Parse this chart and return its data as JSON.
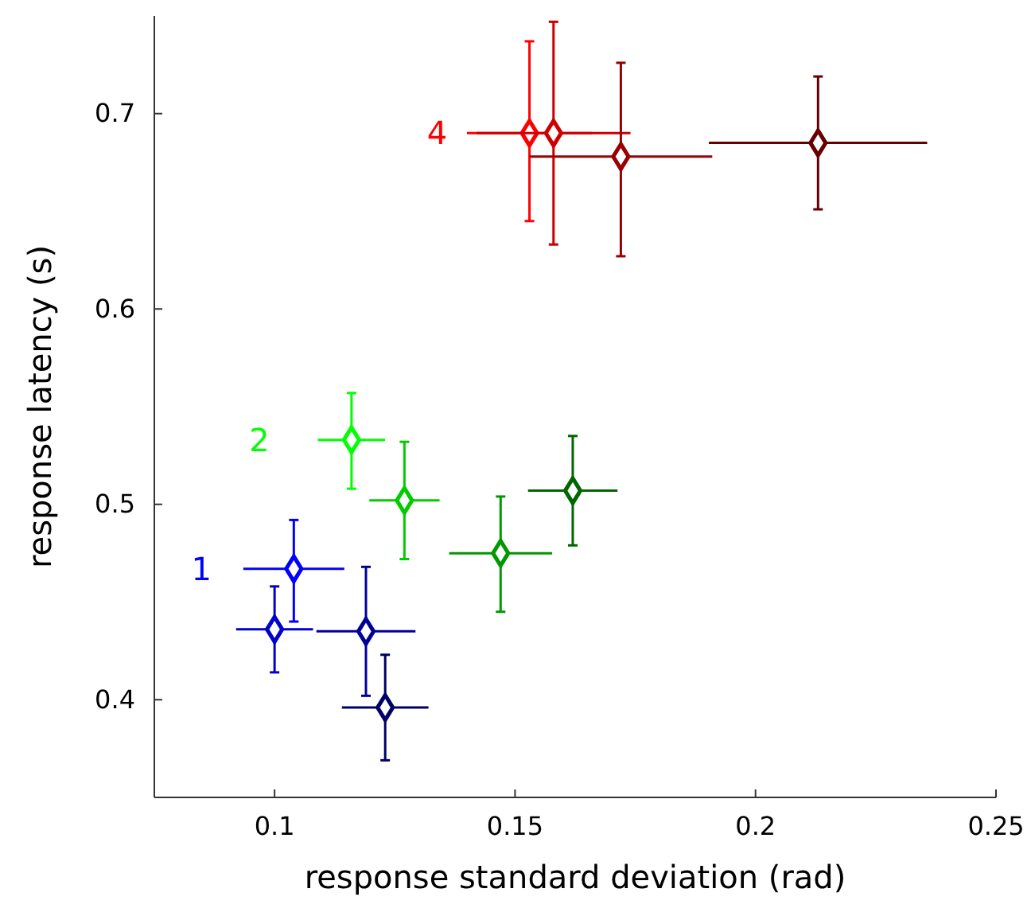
{
  "chart_data": {
    "type": "scatter",
    "xlabel": "response standard deviation (rad)",
    "ylabel": "response latency (s)",
    "xlim": [
      0.075,
      0.25
    ],
    "ylim": [
      0.35,
      0.75
    ],
    "xticks": [
      0.1,
      0.15,
      0.2,
      0.25
    ],
    "yticks": [
      0.4,
      0.5,
      0.6,
      0.7
    ],
    "marker": "diamond",
    "grid": false,
    "legend": false,
    "series": [
      {
        "name": "1",
        "color": "#0000ff",
        "colors": [
          "#0000ff",
          "#0000cc",
          "#000099",
          "#000066"
        ],
        "x": [
          0.104,
          0.1,
          0.119,
          0.123
        ],
        "values": [
          0.467,
          0.436,
          0.435,
          0.396
        ],
        "xerrors": [
          0.0105,
          0.008,
          0.0103,
          0.009
        ],
        "errors": [
          [
            0.44,
            0.492
          ],
          [
            0.414,
            0.458
          ],
          [
            0.402,
            0.468
          ],
          [
            0.369,
            0.423
          ]
        ]
      },
      {
        "name": "2",
        "color": "#00ff00",
        "colors": [
          "#00ff00",
          "#00cc00",
          "#009900",
          "#006600"
        ],
        "x": [
          0.116,
          0.127,
          0.147,
          0.162
        ],
        "values": [
          0.533,
          0.502,
          0.475,
          0.507
        ],
        "xerrors": [
          0.007,
          0.0073,
          0.0107,
          0.0093
        ],
        "errors": [
          [
            0.508,
            0.557
          ],
          [
            0.472,
            0.532
          ],
          [
            0.445,
            0.504
          ],
          [
            0.479,
            0.535
          ]
        ]
      },
      {
        "name": "4",
        "color": "#ff0000",
        "colors": [
          "#ff0000",
          "#cc0000",
          "#990000",
          "#660000"
        ],
        "x": [
          0.153,
          0.158,
          0.172,
          0.213
        ],
        "values": [
          0.69,
          0.69,
          0.678,
          0.685
        ],
        "xerrors": [
          0.013,
          0.016,
          0.019,
          0.0227
        ],
        "errors": [
          [
            0.645,
            0.737
          ],
          [
            0.633,
            0.747
          ],
          [
            0.627,
            0.726
          ],
          [
            0.651,
            0.719
          ]
        ]
      }
    ]
  }
}
